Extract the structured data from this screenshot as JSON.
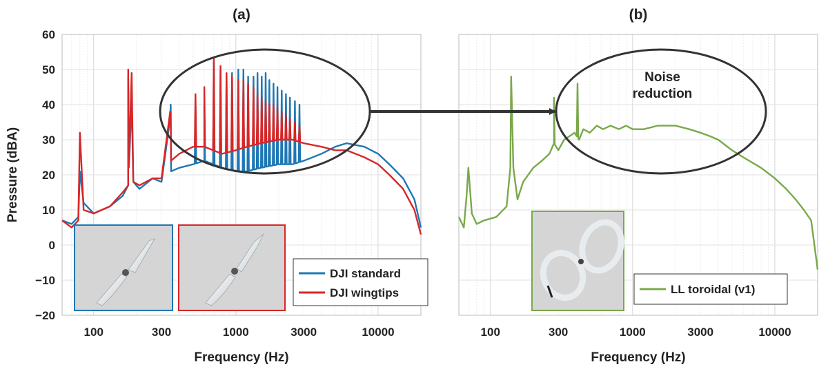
{
  "chart_data": [
    {
      "type": "line",
      "panel_label": "(a)",
      "xlabel": "Frequency (Hz)",
      "ylabel": "Pressure (dBA)",
      "xscale": "log",
      "xlim": [
        60,
        20000
      ],
      "ylim": [
        -20,
        60
      ],
      "grid": true,
      "xticks": [
        100,
        300,
        1000,
        3000,
        10000
      ],
      "xtick_labels": [
        "100",
        "300",
        "1000",
        "3000",
        "10000"
      ],
      "yticks": [
        -20,
        -10,
        0,
        10,
        20,
        30,
        40,
        50,
        60
      ],
      "ytick_labels": [
        "−20",
        "−10",
        "0",
        "10",
        "20",
        "30",
        "40",
        "50",
        "60"
      ],
      "legend": "bottom-right",
      "series": [
        {
          "name": "DJI standard",
          "color": "#1f77b4",
          "x": [
            60,
            70,
            78,
            80,
            85,
            100,
            130,
            160,
            175,
            185,
            190,
            210,
            260,
            300,
            345,
            350,
            400,
            500,
            600,
            800,
            1000,
            1200,
            1500,
            2000,
            2500,
            3000,
            4000,
            5000,
            6000,
            8000,
            10000,
            12000,
            15000,
            18000,
            20000
          ],
          "y": [
            7,
            6,
            8,
            21,
            12,
            9,
            11,
            14,
            17,
            41,
            18,
            16,
            19,
            18,
            36,
            21,
            22,
            23,
            24,
            22,
            21,
            21,
            22,
            23,
            23,
            24,
            26,
            28,
            29,
            28,
            26,
            23,
            19,
            13,
            5
          ],
          "peaks_x": [
            175,
            348,
            520,
            600,
            700,
            780,
            860,
            940,
            1040,
            1130,
            1220,
            1330,
            1420,
            1520,
            1620,
            1720,
            1840,
            1960,
            2100,
            2250,
            2400,
            2600,
            2800
          ],
          "peaks_y": [
            48,
            40,
            40,
            40,
            52,
            50,
            48,
            49,
            50,
            50,
            48,
            48,
            49,
            48,
            49,
            47,
            46,
            45,
            44,
            43,
            42,
            41,
            40
          ]
        },
        {
          "name": "DJI wingtips",
          "color": "#d62728",
          "x": [
            60,
            70,
            78,
            80,
            85,
            100,
            130,
            160,
            175,
            185,
            190,
            210,
            260,
            300,
            345,
            350,
            400,
            500,
            600,
            800,
            1000,
            1200,
            1500,
            2000,
            2500,
            3000,
            4000,
            5000,
            6000,
            8000,
            10000,
            12000,
            15000,
            18000,
            20000
          ],
          "y": [
            7,
            5,
            7,
            32,
            10,
            9,
            11,
            15,
            17,
            49,
            18,
            17,
            19,
            19,
            38,
            24,
            26,
            28,
            28,
            26,
            27,
            28,
            29,
            30,
            30,
            29,
            28,
            27,
            27,
            25,
            23,
            20,
            16,
            10,
            3
          ],
          "peaks_x": [
            175,
            348,
            520,
            600,
            700,
            780,
            860,
            940,
            1040,
            1130,
            1220,
            1330,
            1420,
            1520,
            1620,
            1720,
            1840,
            1960,
            2100,
            2250,
            2400,
            2600,
            2800
          ],
          "peaks_y": [
            50,
            38,
            43,
            45,
            53,
            51,
            49,
            48,
            47,
            47,
            46,
            45,
            43,
            42,
            41,
            40,
            40,
            39,
            38,
            37,
            36,
            35,
            34
          ]
        }
      ]
    },
    {
      "type": "line",
      "panel_label": "(b)",
      "xlabel": "Frequency (Hz)",
      "ylabel": "",
      "xscale": "log",
      "xlim": [
        60,
        20000
      ],
      "ylim": [
        -20,
        60
      ],
      "grid": true,
      "xticks": [
        100,
        300,
        1000,
        3000,
        10000
      ],
      "xtick_labels": [
        "100",
        "300",
        "1000",
        "3000",
        "10000"
      ],
      "legend": "bottom-right",
      "annotation": "Noise\nreduction",
      "series": [
        {
          "name": "LL toroidal (v1)",
          "color": "#7aa84a",
          "x": [
            60,
            65,
            68,
            70,
            74,
            80,
            90,
            110,
            130,
            138,
            140,
            145,
            155,
            170,
            200,
            230,
            260,
            280,
            300,
            330,
            360,
            390,
            420,
            450,
            500,
            560,
            620,
            700,
            800,
            900,
            1000,
            1200,
            1500,
            1800,
            2000,
            2500,
            3000,
            3500,
            4000,
            5000,
            6000,
            8000,
            10000,
            12000,
            14000,
            16000,
            18000,
            20000
          ],
          "y": [
            8,
            5,
            14,
            22,
            9,
            6,
            7,
            8,
            11,
            22,
            48,
            22,
            13,
            18,
            22,
            24,
            26,
            29,
            27,
            30,
            31,
            32,
            30,
            33,
            32,
            34,
            33,
            34,
            33,
            34,
            33,
            33,
            34,
            34,
            34,
            33,
            32,
            31,
            30,
            27,
            25,
            22,
            19,
            16,
            13,
            10,
            7,
            -7
          ],
          "peaks_x": [
            140,
            280,
            410
          ],
          "peaks_y": [
            48,
            42,
            46
          ]
        }
      ]
    }
  ]
}
